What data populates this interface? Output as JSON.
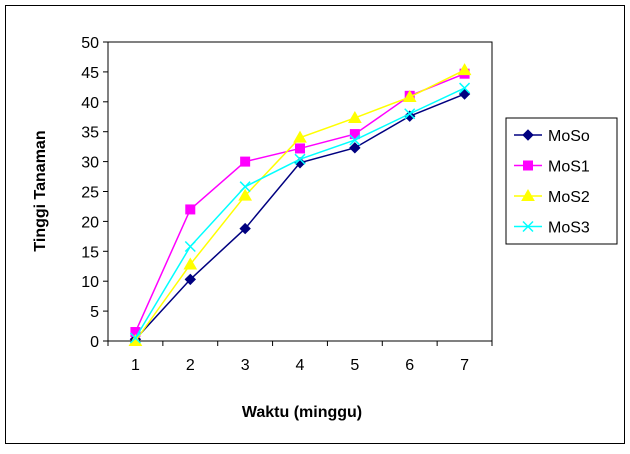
{
  "chart_data": {
    "type": "line",
    "title": "",
    "xlabel": "Waktu (minggu)",
    "ylabel": "Tinggi Tanaman",
    "categories": [
      "1",
      "2",
      "3",
      "4",
      "5",
      "6",
      "7"
    ],
    "ylim": [
      0,
      50
    ],
    "yticks": [
      "0",
      "5",
      "10",
      "15",
      "20",
      "25",
      "30",
      "35",
      "40",
      "45",
      "50"
    ],
    "grid": false,
    "legend_position": "right",
    "series": [
      {
        "name": "MoSo",
        "values": [
          0.3,
          10.3,
          18.8,
          29.8,
          32.3,
          37.6,
          41.3
        ],
        "color": "#000080",
        "marker": "diamond"
      },
      {
        "name": "MoS1",
        "values": [
          1.5,
          22.0,
          30.0,
          32.2,
          34.6,
          41.0,
          44.7
        ],
        "color": "#FF00FF",
        "marker": "square"
      },
      {
        "name": "MoS2",
        "values": [
          0.0,
          12.8,
          24.3,
          34.0,
          37.3,
          40.8,
          45.3
        ],
        "color": "#FFFF00",
        "marker": "triangle"
      },
      {
        "name": "MoS3",
        "values": [
          0.5,
          15.8,
          25.8,
          30.4,
          33.6,
          38.0,
          42.3
        ],
        "color": "#00FFFF",
        "marker": "x"
      }
    ]
  }
}
